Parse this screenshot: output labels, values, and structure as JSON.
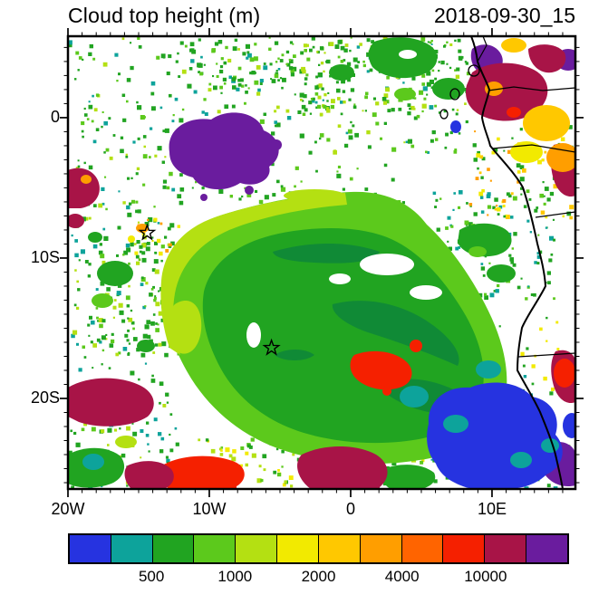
{
  "header": {
    "title": "Cloud top height (m)",
    "datetime": "2018-09-30_15"
  },
  "chart_data": {
    "type": "heatmap",
    "title": "Cloud top height (m)",
    "datetime": "2018-09-30_15",
    "units": "m",
    "map": {
      "lon_range": [
        -20,
        15.9
      ],
      "lat_range": [
        -26.45,
        5.8
      ],
      "x_ticks": [
        {
          "lon": -20,
          "label": "20W"
        },
        {
          "lon": -10,
          "label": "10W"
        },
        {
          "lon": 0,
          "label": "0"
        },
        {
          "lon": 10,
          "label": "10E"
        }
      ],
      "y_ticks": [
        {
          "lat": 0,
          "label": "0"
        },
        {
          "lat": -10,
          "label": "10S"
        },
        {
          "lat": -20,
          "label": "20S"
        }
      ],
      "minor_tick_step_deg": 1,
      "coastline": "west coast of Africa (Gulf of Guinea to Namibia)"
    },
    "colorbar": {
      "n_cells": 12,
      "colors": [
        "#2633e0",
        "#0da39b",
        "#21a421",
        "#5cc91c",
        "#b4e012",
        "#f2ea00",
        "#ffc800",
        "#ff9e00",
        "#ff6400",
        "#f52000",
        "#a81447",
        "#6a1c9e"
      ],
      "tick_labels": [
        {
          "after_cell": 2,
          "label": "500"
        },
        {
          "after_cell": 4,
          "label": "1000"
        },
        {
          "after_cell": 6,
          "label": "2000"
        },
        {
          "after_cell": 8,
          "label": "4000"
        },
        {
          "after_cell": 10,
          "label": "10000"
        }
      ]
    },
    "extra_colors": {
      "deck_shade": "#108a36",
      "coast": "#000000",
      "background": "#ffffff"
    },
    "markers": [
      {
        "type": "star",
        "lon": -14.4,
        "lat": -8.2
      },
      {
        "type": "star",
        "lon": -5.6,
        "lat": -16.4
      }
    ],
    "regions": [
      {
        "feature": "stratocumulus deck (main)",
        "lon_extent": [
          -13,
          4
        ],
        "lat_extent": [
          -22,
          -7
        ],
        "cloud_top_m": "750-1500",
        "palette_color": "green"
      },
      {
        "feature": "deck NW fringe",
        "lon_extent": [
          -14,
          -3
        ],
        "lat_extent": [
          -12,
          -5
        ],
        "cloud_top_m": "1500-3000",
        "palette_color": "light green / yellow-green"
      },
      {
        "feature": "high cloud cluster",
        "lon_extent": [
          -13,
          -6
        ],
        "lat_extent": [
          -3,
          2
        ],
        "cloud_top_m": ">10000",
        "palette_color": "purple"
      },
      {
        "feature": "deep convection near Cameroon/Gabon coast",
        "lon_extent": [
          6,
          15.9
        ],
        "lat_extent": [
          -2,
          5.8
        ],
        "cloud_top_m": "2000-10000+",
        "palette_color": "yellow/orange/red/maroon"
      },
      {
        "feature": "coastal low cloud off Angola/Namibia",
        "lon_extent": [
          3,
          14
        ],
        "lat_extent": [
          -26,
          -17
        ],
        "cloud_top_m": "<500",
        "palette_color": "blue/teal"
      },
      {
        "feature": "embedded convective cells in deck",
        "lon_extent": [
          -4,
          -1
        ],
        "lat_extent": [
          -19,
          -16
        ],
        "cloud_top_m": "~10000",
        "palette_color": "red"
      },
      {
        "feature": "southwest maroon patch",
        "lon_extent": [
          -20,
          -14
        ],
        "lat_extent": [
          -19,
          -16.5
        ],
        "cloud_top_m": ">10000",
        "palette_color": "maroon"
      },
      {
        "feature": "west-edge maroon patch",
        "lon_extent": [
          -20,
          -17.5
        ],
        "lat_extent": [
          -7,
          -4
        ],
        "cloud_top_m": ">10000",
        "palette_color": "maroon"
      },
      {
        "feature": "southern maroon/red patches",
        "lon_extent": [
          -10,
          2
        ],
        "lat_extent": [
          -26.5,
          -22
        ],
        "cloud_top_m": "10000+",
        "palette_color": "red/maroon"
      },
      {
        "feature": "scattered trade cumulus",
        "lon_extent": [
          -20,
          10
        ],
        "lat_extent": [
          -6,
          5.8
        ],
        "cloud_top_m": "500-2000",
        "palette_color": "green speckle"
      },
      {
        "feature": "clear sky gaps",
        "lon_extent": null,
        "lat_extent": null,
        "cloud_top_m": "none",
        "palette_color": "white"
      }
    ]
  }
}
